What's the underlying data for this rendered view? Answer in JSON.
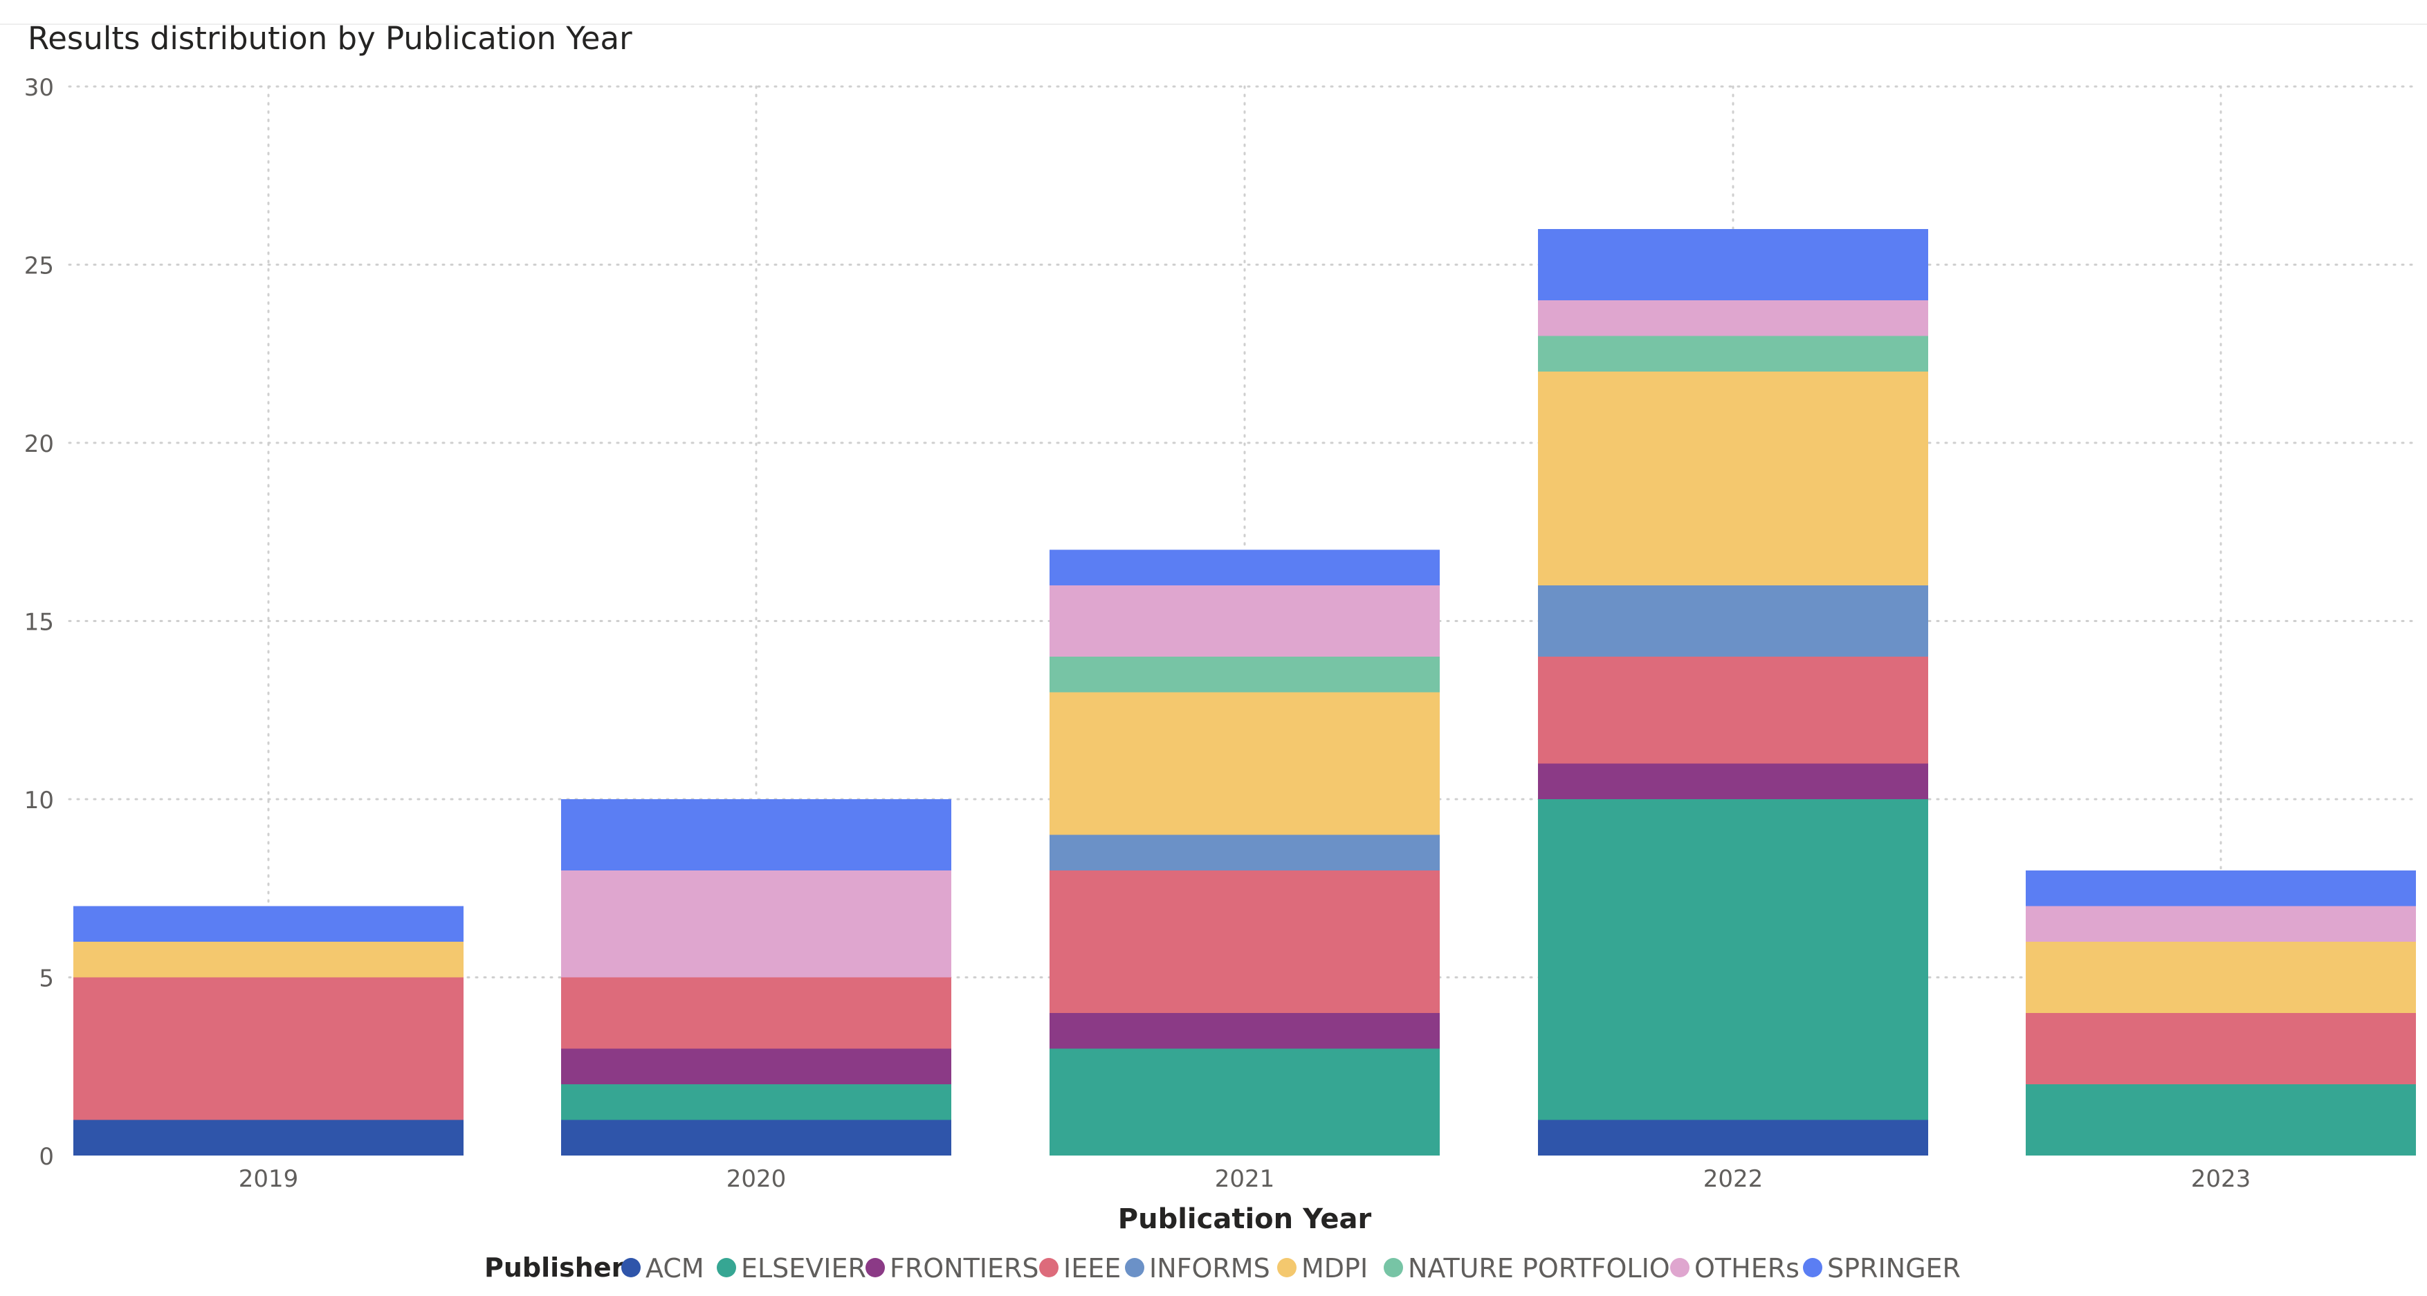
{
  "chart_data": {
    "type": "bar",
    "stacked": true,
    "title": "Results distribution by Publication Year",
    "xlabel": "Publication Year",
    "ylabel": "",
    "ylim": [
      0,
      30
    ],
    "yticks": [
      0,
      5,
      10,
      15,
      20,
      25,
      30
    ],
    "grid": true,
    "legend_position": "bottom",
    "legend_title": "Publisher",
    "categories": [
      "2019",
      "2020",
      "2021",
      "2022",
      "2023"
    ],
    "series": [
      {
        "name": "ACM",
        "color": "#2f55aa",
        "values": [
          1,
          1,
          0,
          1,
          0
        ]
      },
      {
        "name": "ELSEVIER",
        "color": "#36a693",
        "values": [
          0,
          1,
          3,
          9,
          2
        ]
      },
      {
        "name": "FRONTIERS",
        "color": "#8b3a86",
        "values": [
          0,
          1,
          1,
          1,
          0
        ]
      },
      {
        "name": "IEEE",
        "color": "#dd6b7b",
        "values": [
          4,
          2,
          4,
          3,
          2
        ]
      },
      {
        "name": "INFORMS",
        "color": "#6b91c7",
        "values": [
          0,
          0,
          1,
          2,
          0
        ]
      },
      {
        "name": "MDPI",
        "color": "#f4c86e",
        "values": [
          1,
          0,
          4,
          6,
          2
        ]
      },
      {
        "name": "NATURE PORTFOLIO",
        "color": "#77c4a5",
        "values": [
          0,
          0,
          1,
          1,
          0
        ]
      },
      {
        "name": "OTHERs",
        "color": "#dfa6cf",
        "values": [
          0,
          3,
          2,
          1,
          1
        ]
      },
      {
        "name": "SPRINGER",
        "color": "#5b7ef3",
        "values": [
          1,
          2,
          1,
          2,
          1
        ]
      }
    ]
  },
  "colors": {
    "grid": "#cfcfcf",
    "tick_text": "#605e5c",
    "title_text": "#252423",
    "axis_label_text": "#252423"
  }
}
